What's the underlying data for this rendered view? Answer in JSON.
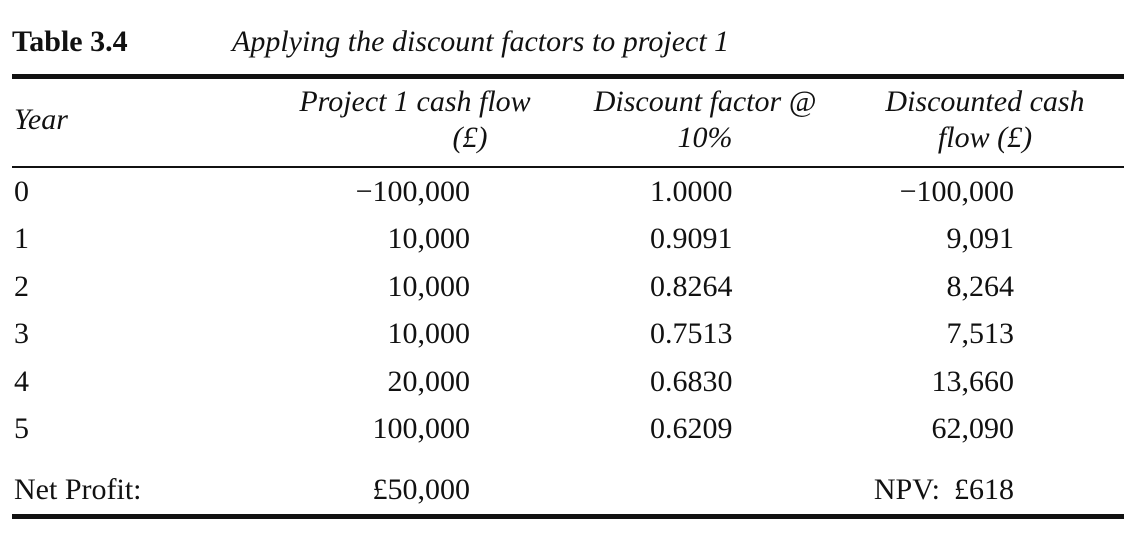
{
  "caption": {
    "number": "Table 3.4",
    "title": "Applying the discount factors to project 1"
  },
  "columns": {
    "year": "Year",
    "cash_flow_line1": "Project 1 cash flow",
    "cash_flow_line2": "(£)",
    "discount_line1": "Discount factor @",
    "discount_line2": "10%",
    "discounted_line1": "Discounted cash",
    "discounted_line2": "flow (£)"
  },
  "rows": [
    {
      "year": "0",
      "cash_flow": "−100,000",
      "discount_factor": "1.0000",
      "discounted": "−100,000"
    },
    {
      "year": "1",
      "cash_flow": "10,000",
      "discount_factor": "0.9091",
      "discounted": "9,091"
    },
    {
      "year": "2",
      "cash_flow": "10,000",
      "discount_factor": "0.8264",
      "discounted": "8,264"
    },
    {
      "year": "3",
      "cash_flow": "10,000",
      "discount_factor": "0.7513",
      "discounted": "7,513"
    },
    {
      "year": "4",
      "cash_flow": "20,000",
      "discount_factor": "0.6830",
      "discounted": "13,660"
    },
    {
      "year": "5",
      "cash_flow": "100,000",
      "discount_factor": "0.6209",
      "discounted": "62,090"
    }
  ],
  "summary": {
    "net_profit_label": "Net Profit:",
    "net_profit_value": "£50,000",
    "npv_label": "NPV:",
    "npv_value": "£618"
  }
}
